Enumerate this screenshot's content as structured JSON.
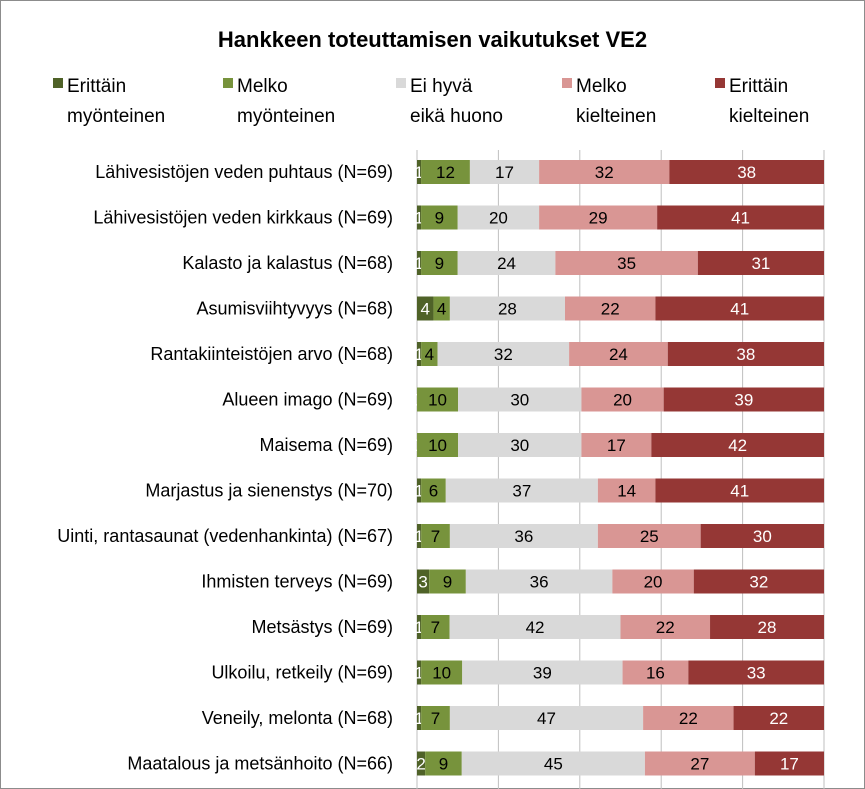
{
  "chart_data": {
    "type": "bar",
    "orientation": "horizontal",
    "stacked": true,
    "percent_stacked": true,
    "title": "Hankkeen toteuttamisen vaikutukset VE2",
    "legend_position": "top",
    "grid": true,
    "categories": [
      "Lähivesistöjen veden puhtaus  (N=69)",
      "Lähivesistöjen veden kirkkaus (N=69)",
      "Kalasto ja kalastus (N=68)",
      "Asumisviihtyvyys (N=68)",
      "Rantakiinteistöjen arvo (N=68)",
      "Alueen imago (N=69)",
      "Maisema (N=69)",
      "Marjastus ja sienenstys (N=70)",
      "Uinti, rantasaunat (vedenhankinta) (N=67)",
      "Ihmisten terveys (N=69)",
      "Metsästys (N=69)",
      "Ulkoilu, retkeily (N=69)",
      "Veneily, melonta (N=68)",
      "Maatalous ja metsänhoito (N=66)"
    ],
    "series": [
      {
        "name": "Erittäin\nmyönteinen",
        "color": "#4f6228",
        "label_color": "#ffffff",
        "values": [
          1,
          1,
          1,
          4,
          1,
          0,
          0,
          1,
          1,
          3,
          1,
          1,
          1,
          2
        ]
      },
      {
        "name": "Melko\nmyönteinen",
        "color": "#77933c",
        "label_color": "#000000",
        "values": [
          12,
          9,
          9,
          4,
          4,
          10,
          10,
          6,
          7,
          9,
          7,
          10,
          7,
          9
        ]
      },
      {
        "name": "Ei hyvä\neikä huono",
        "color": "#d9d9d9",
        "label_color": "#000000",
        "values": [
          17,
          20,
          24,
          28,
          32,
          30,
          30,
          37,
          36,
          36,
          42,
          39,
          47,
          45
        ]
      },
      {
        "name": "Melko\nkielteinen",
        "color": "#d99694",
        "label_color": "#000000",
        "values": [
          32,
          29,
          35,
          22,
          24,
          20,
          17,
          14,
          25,
          20,
          22,
          16,
          22,
          27
        ]
      },
      {
        "name": "Erittäin\nkielteinen",
        "color": "#953735",
        "label_color": "#ffffff",
        "values": [
          38,
          41,
          31,
          41,
          38,
          39,
          42,
          41,
          30,
          32,
          28,
          33,
          22,
          17
        ]
      }
    ]
  }
}
